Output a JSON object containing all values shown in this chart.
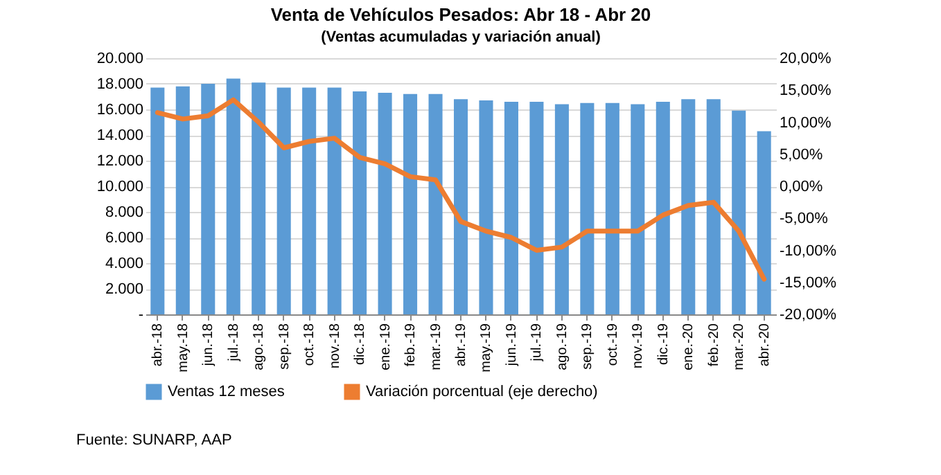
{
  "chart_data": {
    "type": "bar",
    "title": "Venta de Vehículos Pesados: Abr 18 - Abr 20",
    "subtitle": "(Ventas acumuladas y variación anual)",
    "categories": [
      "abr.-18",
      "may.-18",
      "jun.-18",
      "jul.-18",
      "ago.-18",
      "sep.-18",
      "oct.-18",
      "nov.-18",
      "dic.-18",
      "ene.-19",
      "feb.-19",
      "mar.-19",
      "abr.-19",
      "may.-19",
      "jun.-19",
      "jul.-19",
      "ago.-19",
      "sep.-19",
      "oct.-19",
      "nov.-19",
      "dic.-19",
      "ene.-20",
      "feb.-20",
      "mar.-20",
      "abr.-20"
    ],
    "series": [
      {
        "name": "Ventas 12 meses",
        "color": "#5b9bd5",
        "values": [
          17700,
          17800,
          18000,
          18400,
          18100,
          17700,
          17700,
          17700,
          17400,
          17300,
          17200,
          17200,
          16800,
          16700,
          16600,
          16600,
          16400,
          16500,
          16500,
          16400,
          16600,
          16800,
          16800,
          15900,
          14300
        ]
      },
      {
        "name": "Variación porcentual (eje derecho)",
        "color": "#ed7d31",
        "type": "line",
        "axis": "y2",
        "values": [
          11.5,
          10.5,
          11,
          13.5,
          10,
          6,
          7,
          7.5,
          4.5,
          3.5,
          1.5,
          1,
          -5.5,
          -7,
          -8,
          -10,
          -9.5,
          -7,
          -7,
          -7,
          -4.5,
          -3,
          -2.5,
          -7,
          -14.5
        ]
      }
    ],
    "ylim": [
      0,
      20000
    ],
    "yticks": [
      {
        "value": 0,
        "label": "-"
      },
      {
        "value": 2000,
        "label": "2.000"
      },
      {
        "value": 4000,
        "label": "4.000"
      },
      {
        "value": 6000,
        "label": "6.000"
      },
      {
        "value": 8000,
        "label": "8.000"
      },
      {
        "value": 10000,
        "label": "10.000"
      },
      {
        "value": 12000,
        "label": "12.000"
      },
      {
        "value": 14000,
        "label": "14.000"
      },
      {
        "value": 16000,
        "label": "16.000"
      },
      {
        "value": 18000,
        "label": "18.000"
      },
      {
        "value": 20000,
        "label": "20.000"
      }
    ],
    "y2lim": [
      -20,
      20
    ],
    "y2ticks": [
      {
        "value": -20,
        "label": "-20,00%"
      },
      {
        "value": -15,
        "label": "-15,00%"
      },
      {
        "value": -10,
        "label": "-10,00%"
      },
      {
        "value": -5,
        "label": "-5,00%"
      },
      {
        "value": 0,
        "label": "0,00%"
      },
      {
        "value": 5,
        "label": "5,00%"
      },
      {
        "value": 10,
        "label": "10,00%"
      },
      {
        "value": 15,
        "label": "15,00%"
      },
      {
        "value": 20,
        "label": "20,00%"
      }
    ],
    "grid": "y",
    "legend": "bottom",
    "line_style": "solid",
    "marker": "none",
    "annotations": [
      "Fuente: SUNARP, AAP"
    ]
  }
}
